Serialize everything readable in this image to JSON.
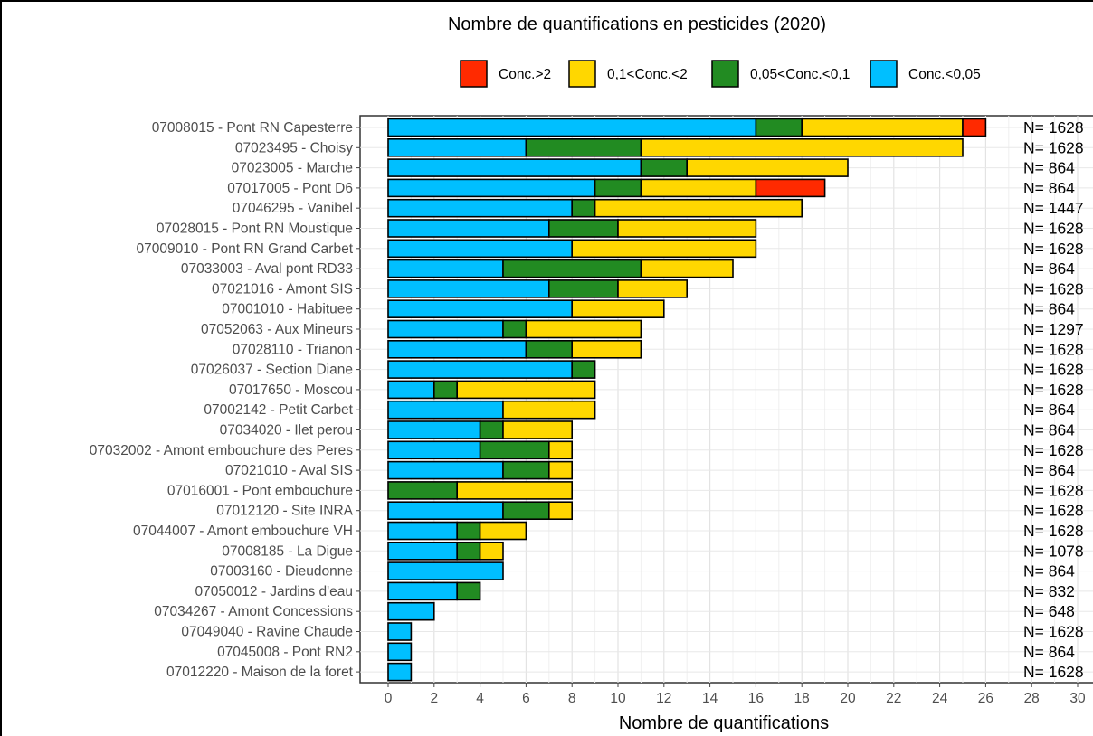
{
  "chart_data": {
    "type": "bar",
    "orientation": "horizontal",
    "stacked": true,
    "title": "Nombre de quantifications en pesticides (2020)",
    "xlabel": "Nombre de quantifications",
    "ylabel": "",
    "xlim": [
      0,
      30
    ],
    "xticks": [
      "0",
      "2",
      "4",
      "6",
      "8",
      "10",
      "12",
      "14",
      "16",
      "18",
      "20",
      "22",
      "24",
      "26",
      "28",
      "30"
    ],
    "grid": true,
    "legend_position": "top",
    "legend": [
      {
        "label": "Conc.>2",
        "color": "#ff2a00"
      },
      {
        "label": "0,1<Conc.<2",
        "color": "#ffd700"
      },
      {
        "label": "0,05<Conc.<0,1",
        "color": "#228b22"
      },
      {
        "label": "Conc.<0,05",
        "color": "#00bfff"
      }
    ],
    "categories": [
      "07008015 - Pont RN Capesterre",
      "07023495 - Choisy",
      "07023005 - Marche",
      "07017005 - Pont D6",
      "07046295 - Vanibel",
      "07028015 - Pont RN Moustique",
      "07009010 - Pont RN Grand Carbet",
      "07033003 - Aval pont RD33",
      "07021016 - Amont SIS",
      "07001010 - Habituee",
      "07052063 - Aux Mineurs",
      "07028110 - Trianon",
      "07026037 - Section Diane",
      "07017650 - Moscou",
      "07002142 - Petit Carbet",
      "07034020 - Ilet perou",
      "07032002 - Amont embouchure des Peres",
      "07021010 - Aval SIS",
      "07016001 - Pont embouchure",
      "07012120 - Site INRA",
      "07044007 - Amont embouchure VH",
      "07008185 - La Digue",
      "07003160 - Dieudonne",
      "07050012 - Jardins d'eau",
      "07034267 - Amont Concessions",
      "07049040 - Ravine Chaude",
      "07045008 - Pont RN2",
      "07012220 - Maison de la foret"
    ],
    "series": [
      {
        "name": "Conc.<0,05",
        "color": "#00bfff",
        "values": [
          16,
          6,
          11,
          9,
          8,
          7,
          8,
          5,
          7,
          8,
          5,
          6,
          8,
          2,
          5,
          4,
          4,
          5,
          0,
          5,
          3,
          3,
          5,
          3,
          2,
          1,
          1,
          1
        ]
      },
      {
        "name": "0,05<Conc.<0,1",
        "color": "#228b22",
        "values": [
          2,
          5,
          2,
          2,
          1,
          3,
          0,
          6,
          3,
          0,
          1,
          2,
          1,
          1,
          0,
          1,
          3,
          2,
          3,
          2,
          1,
          1,
          0,
          1,
          0,
          0,
          0,
          0
        ]
      },
      {
        "name": "0,1<Conc.<2",
        "color": "#ffd700",
        "values": [
          7,
          14,
          7,
          5,
          9,
          6,
          8,
          4,
          3,
          4,
          5,
          3,
          0,
          6,
          4,
          3,
          1,
          1,
          5,
          1,
          2,
          1,
          0,
          0,
          0,
          0,
          0,
          0
        ]
      },
      {
        "name": "Conc.>2",
        "color": "#ff2a00",
        "values": [
          1,
          0,
          0,
          3,
          0,
          0,
          0,
          0,
          0,
          0,
          0,
          0,
          0,
          0,
          0,
          0,
          0,
          0,
          0,
          0,
          0,
          0,
          0,
          0,
          0,
          0,
          0,
          0
        ]
      }
    ],
    "annotations": [
      "N= 1628",
      "N= 1628",
      "N= 864",
      "N= 864",
      "N= 1447",
      "N= 1628",
      "N= 1628",
      "N= 864",
      "N= 1628",
      "N= 864",
      "N= 1297",
      "N= 1628",
      "N= 1628",
      "N= 1628",
      "N= 864",
      "N= 864",
      "N= 1628",
      "N= 864",
      "N= 1628",
      "N= 1628",
      "N= 1628",
      "N= 1078",
      "N= 864",
      "N= 832",
      "N= 648",
      "N= 1628",
      "N= 864",
      "N= 1628"
    ]
  }
}
